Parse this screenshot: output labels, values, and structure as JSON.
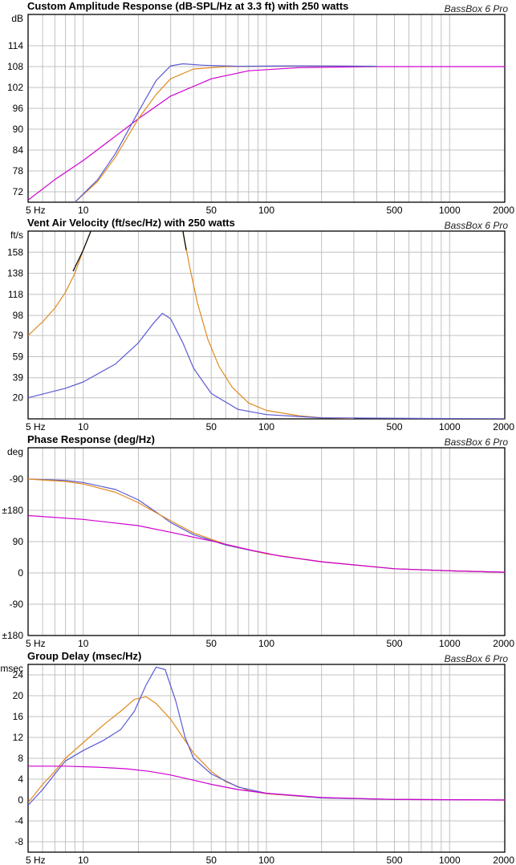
{
  "colors": {
    "blue": "#5a5ad6",
    "orange": "#e08a1e",
    "magenta": "#d000d0",
    "black": "#000000",
    "grid": "#c0c0c0"
  },
  "chart_data": [
    {
      "type": "line",
      "title": "Custom Amplitude Response (dB-SPL/Hz at 3.3 ft) with 250 watts",
      "brand": "BassBox 6 Pro",
      "unit": "dB",
      "x_scale": "log",
      "xlim": [
        5,
        2000
      ],
      "ylim": [
        69,
        123
      ],
      "x_ticks": [
        {
          "v": 5,
          "label": "5 Hz"
        },
        {
          "v": 10,
          "label": "10"
        },
        {
          "v": 50,
          "label": "50"
        },
        {
          "v": 100,
          "label": "100"
        },
        {
          "v": 500,
          "label": "500"
        },
        {
          "v": 1000,
          "label": "1000"
        },
        {
          "v": 2000,
          "label": "2000"
        }
      ],
      "y_ticks": [
        {
          "v": 72,
          "label": "72"
        },
        {
          "v": 78,
          "label": "78"
        },
        {
          "v": 84,
          "label": "84"
        },
        {
          "v": 90,
          "label": "90"
        },
        {
          "v": 96,
          "label": "96"
        },
        {
          "v": 102,
          "label": "102"
        },
        {
          "v": 108,
          "label": "108"
        },
        {
          "v": 114,
          "label": "114"
        }
      ],
      "series": [
        {
          "color": "magenta",
          "points": [
            [
              5,
              69.6
            ],
            [
              7,
              75.5
            ],
            [
              10,
              81
            ],
            [
              15,
              88
            ],
            [
              20,
              93
            ],
            [
              30,
              99.5
            ],
            [
              50,
              104.5
            ],
            [
              80,
              106.8
            ],
            [
              150,
              107.7
            ],
            [
              400,
              108
            ],
            [
              2000,
              108
            ]
          ]
        },
        {
          "color": "orange",
          "points": [
            [
              9,
              69
            ],
            [
              12,
              75
            ],
            [
              15,
              82
            ],
            [
              20,
              93
            ],
            [
              25,
              100
            ],
            [
              30,
              104.5
            ],
            [
              40,
              107.3
            ],
            [
              60,
              108
            ],
            [
              150,
              108.2
            ],
            [
              400,
              108.1
            ]
          ]
        },
        {
          "color": "blue",
          "points": [
            [
              9,
              69
            ],
            [
              12,
              75.5
            ],
            [
              15,
              83
            ],
            [
              20,
              95
            ],
            [
              25,
              104
            ],
            [
              30,
              108.2
            ],
            [
              35,
              108.8
            ],
            [
              45,
              108.4
            ],
            [
              70,
              108.1
            ],
            [
              150,
              108.2
            ],
            [
              400,
              108.1
            ]
          ]
        }
      ]
    },
    {
      "type": "line",
      "title": "Vent Air Velocity (ft/sec/Hz) with 250 watts",
      "brand": "BassBox 6 Pro",
      "unit": "ft/s",
      "x_scale": "log",
      "xlim": [
        5,
        2000
      ],
      "ylim": [
        0,
        178
      ],
      "x_ticks": [
        {
          "v": 5,
          "label": "5 Hz"
        },
        {
          "v": 10,
          "label": "10"
        },
        {
          "v": 50,
          "label": "50"
        },
        {
          "v": 100,
          "label": "100"
        },
        {
          "v": 500,
          "label": "500"
        },
        {
          "v": 1000,
          "label": "1000"
        },
        {
          "v": 2000,
          "label": "2000"
        }
      ],
      "y_ticks": [
        {
          "v": 20,
          "label": "20"
        },
        {
          "v": 39,
          "label": "39"
        },
        {
          "v": 59,
          "label": "59"
        },
        {
          "v": 79,
          "label": "79"
        },
        {
          "v": 98,
          "label": "98"
        },
        {
          "v": 118,
          "label": "118"
        },
        {
          "v": 138,
          "label": "138"
        },
        {
          "v": 158,
          "label": "158"
        }
      ],
      "series": [
        {
          "color": "orange",
          "points": [
            [
              5,
              79
            ],
            [
              6,
              92
            ],
            [
              7,
              105
            ],
            [
              8,
              120
            ],
            [
              9,
              138
            ],
            [
              10,
              160
            ],
            [
              11,
              178
            ]
          ]
        },
        {
          "color": "black",
          "points": [
            [
              8.8,
              140
            ],
            [
              10,
              160
            ],
            [
              11,
              178
            ]
          ]
        },
        {
          "color": "orange",
          "points": [
            [
              35,
              178
            ],
            [
              38,
              145
            ],
            [
              42,
              110
            ],
            [
              48,
              75
            ],
            [
              55,
              50
            ],
            [
              65,
              30
            ],
            [
              80,
              15
            ],
            [
              100,
              8
            ],
            [
              150,
              3
            ],
            [
              200,
              1
            ],
            [
              300,
              0.4
            ]
          ]
        },
        {
          "color": "black",
          "points": [
            [
              35,
              178
            ],
            [
              36.5,
              160
            ]
          ]
        },
        {
          "color": "blue",
          "points": [
            [
              5,
              20
            ],
            [
              8,
              29
            ],
            [
              10,
              35
            ],
            [
              15,
              52
            ],
            [
              20,
              72
            ],
            [
              24,
              90
            ],
            [
              27,
              100
            ],
            [
              30,
              95
            ],
            [
              35,
              72
            ],
            [
              40,
              48
            ],
            [
              50,
              24
            ],
            [
              70,
              9
            ],
            [
              100,
              4
            ],
            [
              200,
              1
            ],
            [
              2000,
              0
            ]
          ]
        }
      ]
    },
    {
      "type": "line",
      "title": "Phase Response (deg/Hz)",
      "brand": "BassBox 6 Pro",
      "unit": "deg",
      "x_scale": "log",
      "xlim": [
        5,
        2000
      ],
      "ylim": [
        -540,
        0
      ],
      "x_ticks": [
        {
          "v": 5,
          "label": "5 Hz"
        },
        {
          "v": 10,
          "label": "10"
        },
        {
          "v": 50,
          "label": "50"
        },
        {
          "v": 100,
          "label": "100"
        },
        {
          "v": 500,
          "label": "500"
        },
        {
          "v": 1000,
          "label": "1000"
        },
        {
          "v": 2000,
          "label": "2000"
        }
      ],
      "y_ticks": [
        {
          "v": -270,
          "label": "±180"
        },
        {
          "v": -540,
          "label": "±180"
        }
      ],
      "y_tick_labels": [
        {
          "pos": -540,
          "label": "±180"
        },
        {
          "pos": -450,
          "label": "-90"
        },
        {
          "pos": -360,
          "label": "0"
        },
        {
          "pos": -270,
          "label": "90"
        },
        {
          "pos": -180,
          "label": "±180"
        },
        {
          "pos": -90,
          "label": "-90"
        },
        {
          "pos": 0,
          "label": "0"
        },
        {
          "pos": 90,
          "label": "90"
        }
      ],
      "series": [
        {
          "color": "blue",
          "points": [
            [
              5,
              -90
            ],
            [
              8,
              -94
            ],
            [
              10,
              -100
            ],
            [
              15,
              -120
            ],
            [
              20,
              -150
            ],
            [
              25,
              -185
            ],
            [
              30,
              -215
            ],
            [
              40,
              -250
            ],
            [
              60,
              -280
            ],
            [
              100,
              -305
            ],
            [
              200,
              -328
            ],
            [
              500,
              -348
            ],
            [
              1000,
              -354
            ],
            [
              2000,
              -358
            ]
          ]
        },
        {
          "color": "orange",
          "points": [
            [
              5,
              -90
            ],
            [
              8,
              -97
            ],
            [
              10,
              -104
            ],
            [
              15,
              -128
            ],
            [
              20,
              -158
            ],
            [
              25,
              -187
            ],
            [
              30,
              -210
            ],
            [
              40,
              -245
            ],
            [
              60,
              -278
            ],
            [
              100,
              -305
            ],
            [
              200,
              -328
            ],
            [
              500,
              -348
            ],
            [
              1000,
              -354
            ],
            [
              2000,
              -358
            ]
          ]
        },
        {
          "color": "magenta",
          "points": [
            [
              5,
              -195
            ],
            [
              10,
              -206
            ],
            [
              20,
              -224
            ],
            [
              30,
              -243
            ],
            [
              50,
              -268
            ],
            [
              80,
              -293
            ],
            [
              120,
              -312
            ],
            [
              200,
              -328
            ],
            [
              500,
              -348
            ],
            [
              1000,
              -354
            ],
            [
              2000,
              -358
            ]
          ]
        }
      ]
    },
    {
      "type": "line",
      "title": "Group Delay (msec/Hz)",
      "brand": "BassBox 6 Pro",
      "unit": "msec",
      "x_scale": "log",
      "xlim": [
        5,
        2000
      ],
      "ylim": [
        -10,
        26
      ],
      "x_ticks": [
        {
          "v": 5,
          "label": "5 Hz"
        },
        {
          "v": 10,
          "label": "10"
        },
        {
          "v": 50,
          "label": "50"
        },
        {
          "v": 100,
          "label": "100"
        },
        {
          "v": 500,
          "label": "500"
        },
        {
          "v": 1000,
          "label": "1000"
        },
        {
          "v": 2000,
          "label": "2000"
        }
      ],
      "y_ticks": [
        {
          "v": -8,
          "label": "-8"
        },
        {
          "v": -4,
          "label": "-4"
        },
        {
          "v": 0,
          "label": "0"
        },
        {
          "v": 4,
          "label": "4"
        },
        {
          "v": 8,
          "label": "8"
        },
        {
          "v": 12,
          "label": "12"
        },
        {
          "v": 16,
          "label": "16"
        },
        {
          "v": 20,
          "label": "20"
        },
        {
          "v": 24,
          "label": "24"
        }
      ],
      "series": [
        {
          "color": "orange",
          "points": [
            [
              5,
              -0.5
            ],
            [
              6,
              3
            ],
            [
              7,
              5.5
            ],
            [
              8,
              8
            ],
            [
              10,
              11
            ],
            [
              13,
              14.5
            ],
            [
              16,
              17
            ],
            [
              19,
              19.3
            ],
            [
              22,
              19.8
            ],
            [
              25,
              18.5
            ],
            [
              30,
              15.5
            ],
            [
              35,
              12
            ],
            [
              40,
              9
            ],
            [
              50,
              5.5
            ],
            [
              60,
              3.5
            ],
            [
              80,
              1.8
            ],
            [
              100,
              1.2
            ],
            [
              200,
              0.4
            ],
            [
              500,
              0.1
            ],
            [
              2000,
              0
            ]
          ]
        },
        {
          "color": "blue",
          "points": [
            [
              5,
              -1
            ],
            [
              6,
              2
            ],
            [
              7,
              5
            ],
            [
              8,
              7.5
            ],
            [
              10,
              9.5
            ],
            [
              13,
              11.5
            ],
            [
              16,
              13.5
            ],
            [
              19,
              17
            ],
            [
              22,
              22
            ],
            [
              25,
              25.5
            ],
            [
              28,
              25
            ],
            [
              32,
              19
            ],
            [
              36,
              12
            ],
            [
              40,
              8
            ],
            [
              50,
              5
            ],
            [
              70,
              2.5
            ],
            [
              100,
              1.3
            ],
            [
              200,
              0.4
            ],
            [
              500,
              0.1
            ],
            [
              2000,
              0
            ]
          ]
        },
        {
          "color": "magenta",
          "points": [
            [
              5,
              6.5
            ],
            [
              8,
              6.5
            ],
            [
              12,
              6.3
            ],
            [
              17,
              6
            ],
            [
              23,
              5.5
            ],
            [
              30,
              4.8
            ],
            [
              40,
              3.8
            ],
            [
              50,
              3
            ],
            [
              70,
              2
            ],
            [
              100,
              1.3
            ],
            [
              200,
              0.5
            ],
            [
              500,
              0.1
            ],
            [
              2000,
              0
            ]
          ]
        }
      ]
    }
  ]
}
